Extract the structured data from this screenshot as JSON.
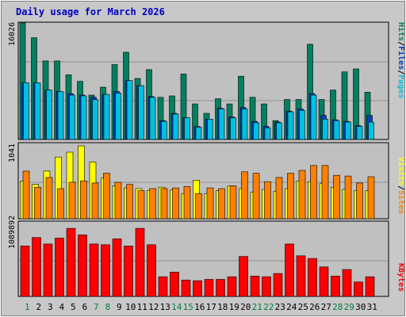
{
  "chart_data": [
    {
      "type": "bar",
      "title": "Daily usage for March 2026",
      "ylabel_max": "16026",
      "legend": [
        "Pages",
        "Files",
        "Hits"
      ],
      "colors": {
        "Pages": "#00c0e0",
        "Files": "#0040c0",
        "Hits": "#008060"
      },
      "categories": [
        "1",
        "2",
        "3",
        "4",
        "5",
        "6",
        "7",
        "8",
        "9",
        "10",
        "11",
        "12",
        "13",
        "14",
        "15",
        "16",
        "17",
        "18",
        "19",
        "20",
        "21",
        "22",
        "23",
        "24",
        "25",
        "26",
        "27",
        "28",
        "29",
        "30",
        "31"
      ],
      "weekend_days": [
        "1",
        "7",
        "8",
        "14",
        "15",
        "21",
        "22",
        "28",
        "29"
      ],
      "ylim": [
        0,
        16026
      ],
      "series": [
        {
          "name": "Hits",
          "values": [
            16026,
            14000,
            10800,
            10800,
            8900,
            8000,
            6100,
            7200,
            10300,
            12000,
            8400,
            9600,
            5800,
            6000,
            9000,
            4900,
            3600,
            5600,
            4900,
            8700,
            5800,
            4900,
            2600,
            5500,
            5500,
            13100,
            5500,
            6800,
            9300,
            9700,
            6500
          ]
        },
        {
          "name": "Files",
          "values": [
            7800,
            7800,
            6800,
            6600,
            6300,
            6100,
            5800,
            6200,
            6600,
            8100,
            7400,
            5900,
            2600,
            3600,
            3000,
            1800,
            2800,
            4300,
            3100,
            4400,
            2500,
            1800,
            2400,
            3900,
            4200,
            6300,
            3300,
            2700,
            2500,
            1900,
            3300
          ]
        },
        {
          "name": "Pages",
          "values": [
            7800,
            7800,
            6800,
            6600,
            6100,
            6000,
            5500,
            6200,
            6400,
            8100,
            7400,
            5800,
            2500,
            3500,
            3000,
            1700,
            2800,
            4200,
            3000,
            4200,
            2300,
            1600,
            2300,
            3800,
            4000,
            6100,
            2800,
            2600,
            2400,
            1800,
            2400
          ]
        }
      ]
    },
    {
      "type": "bar",
      "ylabel_max": "1041",
      "legend": [
        "Sites",
        "Visits"
      ],
      "colors": {
        "Sites": "#ff8000",
        "Visits": "#ffff00"
      },
      "categories": [
        "1",
        "2",
        "3",
        "4",
        "5",
        "6",
        "7",
        "8",
        "9",
        "10",
        "11",
        "12",
        "13",
        "14",
        "15",
        "16",
        "17",
        "18",
        "19",
        "20",
        "21",
        "22",
        "23",
        "24",
        "25",
        "26",
        "27",
        "28",
        "29",
        "30",
        "31"
      ],
      "ylim": [
        0,
        1041
      ],
      "series": [
        {
          "name": "Visits",
          "values": [
            540,
            490,
            680,
            880,
            950,
            1041,
            810,
            580,
            470,
            440,
            430,
            400,
            450,
            410,
            360,
            550,
            360,
            400,
            470,
            430,
            380,
            420,
            390,
            430,
            540,
            530,
            500,
            450,
            420,
            400,
            400
          ]
        },
        {
          "name": "Sites",
          "values": [
            680,
            450,
            590,
            430,
            520,
            540,
            510,
            650,
            520,
            490,
            400,
            430,
            430,
            440,
            460,
            360,
            440,
            430,
            470,
            670,
            650,
            530,
            590,
            650,
            690,
            760,
            760,
            620,
            610,
            510,
            600
          ]
        }
      ]
    },
    {
      "type": "bar",
      "ylabel_max": "1089892",
      "legend": [
        "KBytes"
      ],
      "colors": {
        "KBytes": "#ff0000"
      },
      "categories": [
        "1",
        "2",
        "3",
        "4",
        "5",
        "6",
        "7",
        "8",
        "9",
        "10",
        "11",
        "12",
        "13",
        "14",
        "15",
        "16",
        "17",
        "18",
        "19",
        "20",
        "21",
        "22",
        "23",
        "24",
        "25",
        "26",
        "27",
        "28",
        "29",
        "30",
        "31"
      ],
      "ylim": [
        0,
        1089892
      ],
      "series": [
        {
          "name": "KBytes",
          "values": [
            770000,
            900000,
            800000,
            890000,
            1040000,
            940000,
            800000,
            790000,
            880000,
            770000,
            1040000,
            790000,
            300000,
            370000,
            250000,
            240000,
            260000,
            260000,
            300000,
            610000,
            310000,
            300000,
            350000,
            800000,
            620000,
            580000,
            450000,
            310000,
            410000,
            220000,
            300000
          ]
        }
      ]
    }
  ]
}
